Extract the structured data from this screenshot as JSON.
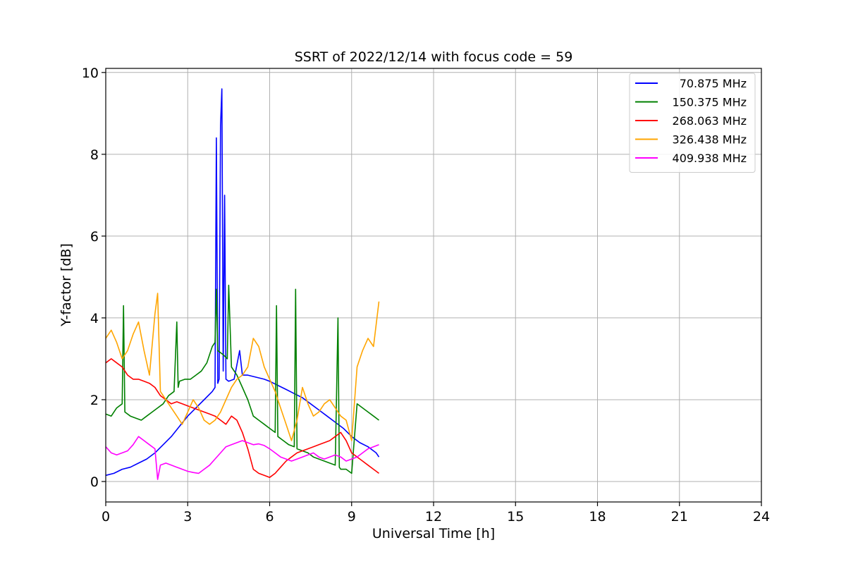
{
  "chart_data": {
    "type": "line",
    "title": "SSRT of 2022/12/14 with focus code = 59",
    "xlabel": "Universal Time [h]",
    "ylabel": "Y-factor [dB]",
    "xlim": [
      0,
      24
    ],
    "ylim": [
      -0.5,
      10.1
    ],
    "xticks": [
      0,
      3,
      6,
      9,
      12,
      15,
      18,
      21,
      24
    ],
    "yticks": [
      0,
      2,
      4,
      6,
      8,
      10
    ],
    "grid": true,
    "legend_position": "top-right",
    "series": [
      {
        "name": "70.875 MHz",
        "color": "#0000ff",
        "x": [
          0,
          0.3,
          0.6,
          0.9,
          1.2,
          1.5,
          1.8,
          2.1,
          2.4,
          2.7,
          3.0,
          3.3,
          3.6,
          3.9,
          4.0,
          4.05,
          4.1,
          4.15,
          4.2,
          4.25,
          4.3,
          4.35,
          4.4,
          4.5,
          4.7,
          4.9,
          5.0,
          5.2,
          5.5,
          5.8,
          6.0,
          6.3,
          6.6,
          6.9,
          7.2,
          7.5,
          7.8,
          8.1,
          8.4,
          8.7,
          9.0,
          9.3,
          9.6,
          9.9,
          10.0
        ],
        "y": [
          0.15,
          0.2,
          0.3,
          0.35,
          0.45,
          0.55,
          0.7,
          0.9,
          1.1,
          1.35,
          1.6,
          1.8,
          2.0,
          2.2,
          2.3,
          8.4,
          2.4,
          2.5,
          8.7,
          9.6,
          2.7,
          7.0,
          2.5,
          2.45,
          2.5,
          3.2,
          2.6,
          2.6,
          2.55,
          2.5,
          2.45,
          2.35,
          2.25,
          2.15,
          2.05,
          1.9,
          1.75,
          1.6,
          1.45,
          1.3,
          1.1,
          0.95,
          0.85,
          0.7,
          0.6
        ]
      },
      {
        "name": "150.375 MHz",
        "color": "#008000",
        "x": [
          0,
          0.2,
          0.4,
          0.6,
          0.65,
          0.7,
          0.9,
          1.1,
          1.3,
          1.5,
          1.7,
          1.9,
          2.1,
          2.3,
          2.5,
          2.6,
          2.65,
          2.7,
          2.9,
          3.1,
          3.3,
          3.5,
          3.7,
          3.9,
          4.0,
          4.05,
          4.1,
          4.3,
          4.45,
          4.5,
          4.6,
          4.8,
          5.0,
          5.2,
          5.4,
          5.6,
          5.8,
          6.0,
          6.2,
          6.25,
          6.3,
          6.5,
          6.7,
          6.9,
          6.95,
          7.0,
          7.2,
          7.4,
          7.6,
          7.8,
          8.0,
          8.2,
          8.4,
          8.5,
          8.55,
          8.6,
          8.8,
          9.0,
          9.2,
          9.4,
          9.6,
          9.8,
          10.0
        ],
        "y": [
          1.65,
          1.6,
          1.8,
          1.9,
          4.3,
          1.7,
          1.6,
          1.55,
          1.5,
          1.6,
          1.7,
          1.8,
          1.9,
          2.1,
          2.2,
          3.9,
          2.3,
          2.45,
          2.5,
          2.5,
          2.6,
          2.7,
          2.9,
          3.3,
          3.4,
          4.7,
          3.2,
          3.1,
          3.0,
          4.8,
          2.8,
          2.6,
          2.3,
          2.0,
          1.6,
          1.5,
          1.4,
          1.3,
          1.2,
          4.3,
          1.1,
          1.0,
          0.9,
          0.85,
          4.7,
          0.8,
          0.75,
          0.7,
          0.6,
          0.55,
          0.5,
          0.45,
          0.4,
          4.0,
          0.35,
          0.3,
          0.3,
          0.2,
          1.9,
          1.8,
          1.7,
          1.6,
          1.5
        ]
      },
      {
        "name": "268.063 MHz",
        "color": "#ff0000",
        "x": [
          0,
          0.2,
          0.4,
          0.6,
          0.8,
          1.0,
          1.2,
          1.4,
          1.6,
          1.8,
          2.0,
          2.2,
          2.4,
          2.6,
          2.8,
          3.0,
          3.2,
          3.4,
          3.6,
          3.8,
          4.0,
          4.2,
          4.4,
          4.6,
          4.8,
          5.0,
          5.2,
          5.4,
          5.6,
          5.8,
          6.0,
          6.2,
          6.4,
          6.6,
          6.8,
          7.0,
          7.2,
          7.4,
          7.6,
          7.8,
          8.0,
          8.2,
          8.4,
          8.6,
          8.8,
          9.0,
          9.2,
          9.4,
          9.6,
          9.8,
          10.0
        ],
        "y": [
          2.9,
          3.0,
          2.9,
          2.8,
          2.6,
          2.5,
          2.5,
          2.45,
          2.4,
          2.3,
          2.1,
          2.0,
          1.9,
          1.95,
          1.9,
          1.85,
          1.8,
          1.75,
          1.7,
          1.65,
          1.6,
          1.5,
          1.4,
          1.6,
          1.5,
          1.2,
          0.8,
          0.3,
          0.2,
          0.15,
          0.1,
          0.2,
          0.35,
          0.5,
          0.6,
          0.7,
          0.75,
          0.8,
          0.85,
          0.9,
          0.95,
          1.0,
          1.1,
          1.2,
          1.0,
          0.7,
          0.6,
          0.5,
          0.4,
          0.3,
          0.2
        ]
      },
      {
        "name": "326.438 MHz",
        "color": "#ffa500",
        "x": [
          0,
          0.2,
          0.4,
          0.6,
          0.8,
          1.0,
          1.2,
          1.4,
          1.6,
          1.8,
          1.9,
          2.0,
          2.2,
          2.4,
          2.6,
          2.8,
          3.0,
          3.2,
          3.4,
          3.6,
          3.8,
          4.0,
          4.2,
          4.4,
          4.6,
          4.8,
          5.0,
          5.2,
          5.4,
          5.6,
          5.8,
          6.0,
          6.2,
          6.4,
          6.6,
          6.8,
          7.0,
          7.2,
          7.4,
          7.6,
          7.8,
          8.0,
          8.2,
          8.4,
          8.6,
          8.8,
          9.0,
          9.2,
          9.4,
          9.6,
          9.8,
          10.0
        ],
        "y": [
          3.5,
          3.7,
          3.4,
          3.0,
          3.2,
          3.6,
          3.9,
          3.2,
          2.6,
          4.1,
          4.6,
          2.2,
          2.0,
          1.8,
          1.6,
          1.4,
          1.7,
          2.0,
          1.8,
          1.5,
          1.4,
          1.5,
          1.7,
          2.0,
          2.3,
          2.5,
          2.6,
          2.8,
          3.5,
          3.3,
          2.8,
          2.5,
          2.2,
          1.8,
          1.4,
          1.0,
          1.5,
          2.3,
          1.9,
          1.6,
          1.7,
          1.9,
          2.0,
          1.8,
          1.6,
          1.5,
          1.0,
          2.8,
          3.2,
          3.5,
          3.3,
          4.4
        ]
      },
      {
        "name": "409.938 MHz",
        "color": "#ff00ff",
        "x": [
          0,
          0.2,
          0.4,
          0.6,
          0.8,
          1.0,
          1.2,
          1.4,
          1.6,
          1.8,
          1.9,
          2.0,
          2.2,
          2.4,
          2.6,
          2.8,
          3.0,
          3.2,
          3.4,
          3.6,
          3.8,
          4.0,
          4.2,
          4.4,
          4.6,
          4.8,
          5.0,
          5.2,
          5.4,
          5.6,
          5.8,
          6.0,
          6.2,
          6.4,
          6.6,
          6.8,
          7.0,
          7.2,
          7.4,
          7.6,
          7.8,
          8.0,
          8.2,
          8.4,
          8.6,
          8.8,
          9.0,
          9.2,
          9.4,
          9.6,
          9.8,
          10.0
        ],
        "y": [
          0.85,
          0.7,
          0.65,
          0.7,
          0.75,
          0.9,
          1.1,
          1.0,
          0.9,
          0.8,
          0.05,
          0.4,
          0.45,
          0.4,
          0.35,
          0.3,
          0.25,
          0.22,
          0.2,
          0.3,
          0.4,
          0.55,
          0.7,
          0.85,
          0.9,
          0.95,
          1.0,
          0.95,
          0.9,
          0.92,
          0.88,
          0.8,
          0.7,
          0.6,
          0.55,
          0.5,
          0.55,
          0.6,
          0.65,
          0.7,
          0.6,
          0.55,
          0.6,
          0.65,
          0.6,
          0.5,
          0.55,
          0.6,
          0.7,
          0.8,
          0.85,
          0.9
        ]
      }
    ]
  }
}
